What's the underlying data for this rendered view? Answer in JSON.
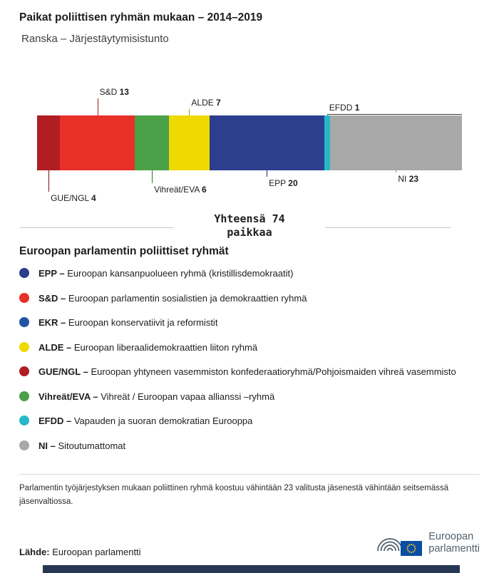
{
  "header": {
    "title": "Paikat poliittisen ryhmän mukaan – 2014–2019",
    "subtitle": "Ranska – Järjestäytymisistunto"
  },
  "chart_data": {
    "type": "bar",
    "orientation": "horizontal-stacked",
    "title": "Paikat poliittisen ryhmän mukaan – 2014–2019",
    "subtitle": "Ranska – Järjestäytymisistunto",
    "total_seats": 74,
    "total_label": "Yhteensä 74 paikkaa",
    "segments": [
      {
        "group": "GUE/NGL",
        "seats": 4,
        "color": "#b01e24",
        "leader_color": "#7d1419",
        "label_side": "below",
        "leader_len": 30
      },
      {
        "group": "S&D",
        "seats": 13,
        "color": "#e83028",
        "leader_color": "#a51e1a",
        "label_side": "above",
        "leader_len": 24
      },
      {
        "group": "Vihreät/EVA",
        "seats": 6,
        "color": "#4aa147",
        "leader_color": "#35722f",
        "label_side": "below",
        "leader_len": 18
      },
      {
        "group": "ALDE",
        "seats": 7,
        "color": "#efd900",
        "leader_color": "#a89a00",
        "label_side": "above",
        "leader_len": 9
      },
      {
        "group": "EPP",
        "seats": 20,
        "color": "#2c3e8e",
        "leader_color": "#1f2c66",
        "label_side": "below",
        "leader_len": 9
      },
      {
        "group": "EFDD",
        "seats": 1,
        "color": "#28b7c8",
        "leader_color": "#1a8a98",
        "label_side": "above",
        "leader_len": 2,
        "underline": true
      },
      {
        "group": "NI",
        "seats": 23,
        "color": "#a8a8a8",
        "leader_color": "#8a8a8a",
        "label_side": "below",
        "leader_len": 3
      }
    ]
  },
  "divider": {
    "line1": "Yhteensä 74",
    "line2": "paikkaa"
  },
  "legend": {
    "heading": "Euroopan parlamentin poliittiset ryhmät",
    "items": [
      {
        "abbr": "EPP –",
        "desc": "Euroopan kansanpuolueen ryhmä (kristillisdemokraatit)",
        "color": "#2c3e8e"
      },
      {
        "abbr": "S&D –",
        "desc": "Euroopan parlamentin sosialistien ja demokraattien ryhmä",
        "color": "#e83028"
      },
      {
        "abbr": "EKR –",
        "desc": "Euroopan konservatiivit ja reformistit",
        "color": "#2255a4"
      },
      {
        "abbr": "ALDE –",
        "desc": "Euroopan liberaalidemokraattien liiton ryhmä",
        "color": "#efd900"
      },
      {
        "abbr": "GUE/NGL –",
        "desc": "Euroopan yhtyneen vasemmiston konfederaatioryhmä/Pohjoismaiden vihreä vasemmisto",
        "color": "#b01e24"
      },
      {
        "abbr": "Vihreät/EVA –",
        "desc": "Vihreät / Euroopan vapaa allianssi –ryhmä",
        "color": "#4aa147"
      },
      {
        "abbr": "EFDD –",
        "desc": "Vapauden ja suoran demokratian Eurooppa",
        "color": "#28b7c8"
      },
      {
        "abbr": "NI –",
        "desc": "Sitoutumattomat",
        "color": "#a8a8a8"
      }
    ]
  },
  "footer": {
    "note": "Parlamentin työjärjestyksen mukaan poliittinen ryhmä koostuu vähintään 23 valitusta jäsenestä vähintään seitsemässä jäsenvaltiossa.",
    "source_label": "Lähde:",
    "source_text": "Euroopan parlamentti",
    "logo_line1": "Euroopan",
    "logo_line2": "parlamentti"
  }
}
